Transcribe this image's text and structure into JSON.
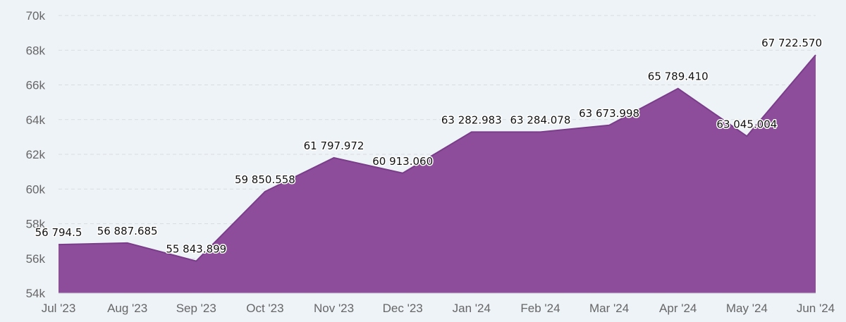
{
  "chart_data": {
    "type": "area",
    "title": "",
    "xlabel": "",
    "ylabel": "",
    "categories": [
      "Jul '23",
      "Aug '23",
      "Sep '23",
      "Oct '23",
      "Nov '23",
      "Dec '23",
      "Jan '24",
      "Feb '24",
      "Mar '24",
      "Apr '24",
      "May '24",
      "Jun '24"
    ],
    "series": [
      {
        "name": "",
        "values": [
          56794.5,
          56887.685,
          55843.899,
          59850.558,
          61797.972,
          60913.06,
          63282.983,
          63284.078,
          63673.998,
          65789.41,
          63045.004,
          67722.57
        ],
        "labels": [
          "56 794.5",
          "56 887.685",
          "55 843.899",
          "59 850.558",
          "61 797.972",
          "60 913.060",
          "63 282.983",
          "63 284.078",
          "63 673.998",
          "65 789.410",
          "63 045.004",
          "67 722.570"
        ]
      }
    ],
    "ylim": [
      54000,
      70000
    ],
    "yticks": [
      54000,
      56000,
      58000,
      60000,
      62000,
      64000,
      66000,
      68000,
      70000
    ],
    "ytick_labels": [
      "54k",
      "56k",
      "58k",
      "60k",
      "62k",
      "64k",
      "66k",
      "68k",
      "70k"
    ],
    "grid": true,
    "legend": "none",
    "colors": {
      "area": "#8e4d9b",
      "line": "#7a3d8a",
      "background": "#eef3f7"
    }
  }
}
